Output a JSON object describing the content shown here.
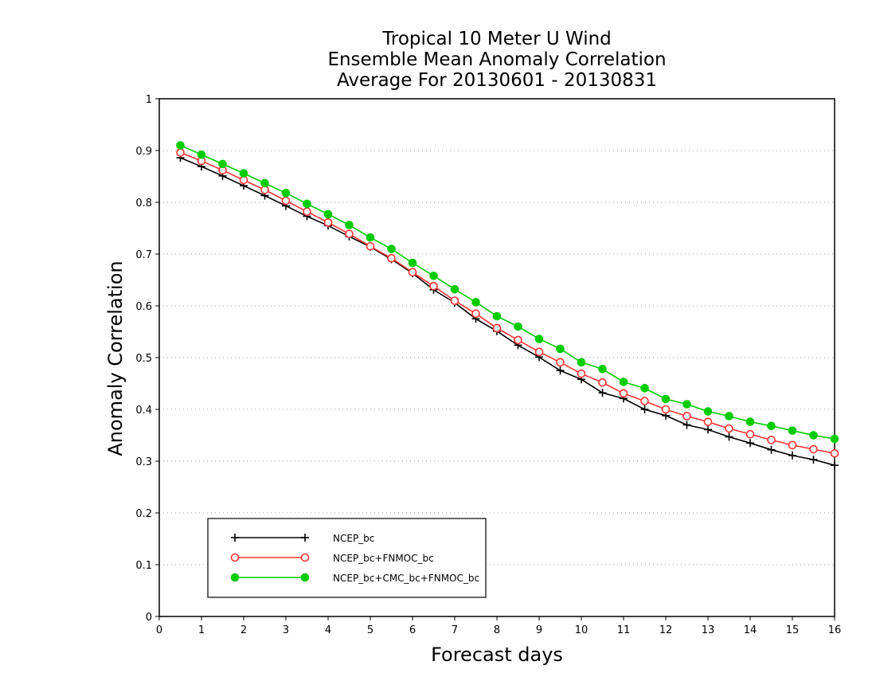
{
  "chart_data": {
    "type": "line",
    "title": [
      "Tropical 10 Meter U Wind",
      "Ensemble Mean Anomaly Correlation",
      "Average For 20130601 - 20130831"
    ],
    "xlabel": "Forecast days",
    "ylabel": "Anomaly Correlation",
    "xlim": [
      0,
      16
    ],
    "ylim": [
      0,
      1
    ],
    "x_ticks": [
      "0",
      "1",
      "2",
      "3",
      "4",
      "5",
      "6",
      "7",
      "8",
      "9",
      "10",
      "11",
      "12",
      "13",
      "14",
      "15",
      "16"
    ],
    "y_ticks": [
      "0",
      "0.1",
      "0.2",
      "0.3",
      "0.4",
      "0.5",
      "0.6",
      "0.7",
      "0.8",
      "0.9",
      "1"
    ],
    "grid": "horizontal dotted",
    "legend_placement": "bottom-left",
    "x": [
      0.5,
      1,
      1.5,
      2,
      2.5,
      3,
      3.5,
      4,
      4.5,
      5,
      5.5,
      6,
      6.5,
      7,
      7.5,
      8,
      8.5,
      9,
      9.5,
      10,
      10.5,
      11,
      11.5,
      12,
      12.5,
      13,
      13.5,
      14,
      14.5,
      15,
      15.5,
      16
    ],
    "series": [
      {
        "name": "NCEP_bc",
        "color": "#000000",
        "marker": "plus",
        "values": [
          0.886,
          0.869,
          0.851,
          0.832,
          0.813,
          0.793,
          0.773,
          0.755,
          0.734,
          0.714,
          0.69,
          0.663,
          0.631,
          0.606,
          0.575,
          0.551,
          0.524,
          0.501,
          0.475,
          0.458,
          0.432,
          0.421,
          0.4,
          0.388,
          0.37,
          0.361,
          0.347,
          0.335,
          0.322,
          0.311,
          0.303,
          0.292
        ]
      },
      {
        "name": "NCEP_bc+FNMOC_bc",
        "color": "#ff3333",
        "marker": "open-circle",
        "values": [
          0.896,
          0.88,
          0.862,
          0.843,
          0.824,
          0.803,
          0.782,
          0.761,
          0.739,
          0.715,
          0.692,
          0.665,
          0.638,
          0.61,
          0.585,
          0.557,
          0.534,
          0.511,
          0.491,
          0.469,
          0.452,
          0.431,
          0.416,
          0.4,
          0.387,
          0.376,
          0.363,
          0.352,
          0.341,
          0.331,
          0.323,
          0.315
        ]
      },
      {
        "name": "NCEP_bc+CMC_bc+FNMOC_bc",
        "color": "#00cc00",
        "marker": "filled-circle",
        "values": [
          0.91,
          0.892,
          0.874,
          0.856,
          0.837,
          0.818,
          0.797,
          0.777,
          0.756,
          0.732,
          0.71,
          0.683,
          0.658,
          0.632,
          0.607,
          0.58,
          0.56,
          0.536,
          0.517,
          0.491,
          0.478,
          0.453,
          0.441,
          0.42,
          0.41,
          0.396,
          0.387,
          0.376,
          0.368,
          0.359,
          0.35,
          0.343
        ]
      }
    ]
  }
}
